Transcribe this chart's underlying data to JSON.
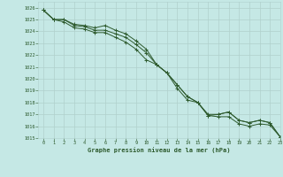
{
  "title": "Graphe pression niveau de la mer (hPa)",
  "bg_color": "#c5e8e5",
  "grid_color": "#b0d0cc",
  "line_color": "#2d5a2d",
  "ylim": [
    1015,
    1026.5
  ],
  "xlim": [
    -0.5,
    23
  ],
  "yticks": [
    1015,
    1016,
    1017,
    1018,
    1019,
    1020,
    1021,
    1022,
    1023,
    1024,
    1025,
    1026
  ],
  "xticks": [
    0,
    1,
    2,
    3,
    4,
    5,
    6,
    7,
    8,
    9,
    10,
    11,
    12,
    13,
    14,
    15,
    16,
    17,
    18,
    19,
    20,
    21,
    22,
    23
  ],
  "series": [
    [
      1025.8,
      1025.0,
      1025.0,
      1024.6,
      1024.5,
      1024.3,
      1024.5,
      1024.1,
      1023.8,
      1023.2,
      1022.5,
      1021.2,
      1020.5,
      1019.5,
      1018.5,
      1018.0,
      1017.0,
      1017.0,
      1017.2,
      1016.5,
      1016.3,
      1016.5,
      1016.3,
      1015.1
    ],
    [
      1025.8,
      1025.0,
      1025.0,
      1024.5,
      1024.4,
      1024.1,
      1024.1,
      1023.8,
      1023.5,
      1022.9,
      1022.2,
      1021.2,
      1020.5,
      1019.5,
      1018.5,
      1018.0,
      1016.9,
      1017.0,
      1017.2,
      1016.5,
      1016.3,
      1016.5,
      1016.3,
      1015.1
    ],
    [
      1025.8,
      1025.0,
      1024.8,
      1024.3,
      1024.2,
      1023.9,
      1023.9,
      1023.5,
      1023.1,
      1022.5,
      1021.6,
      1021.2,
      1020.5,
      1019.2,
      1018.2,
      1018.0,
      1016.9,
      1016.8,
      1016.8,
      1016.2,
      1016.0,
      1016.2,
      1016.1,
      1015.1
    ]
  ]
}
